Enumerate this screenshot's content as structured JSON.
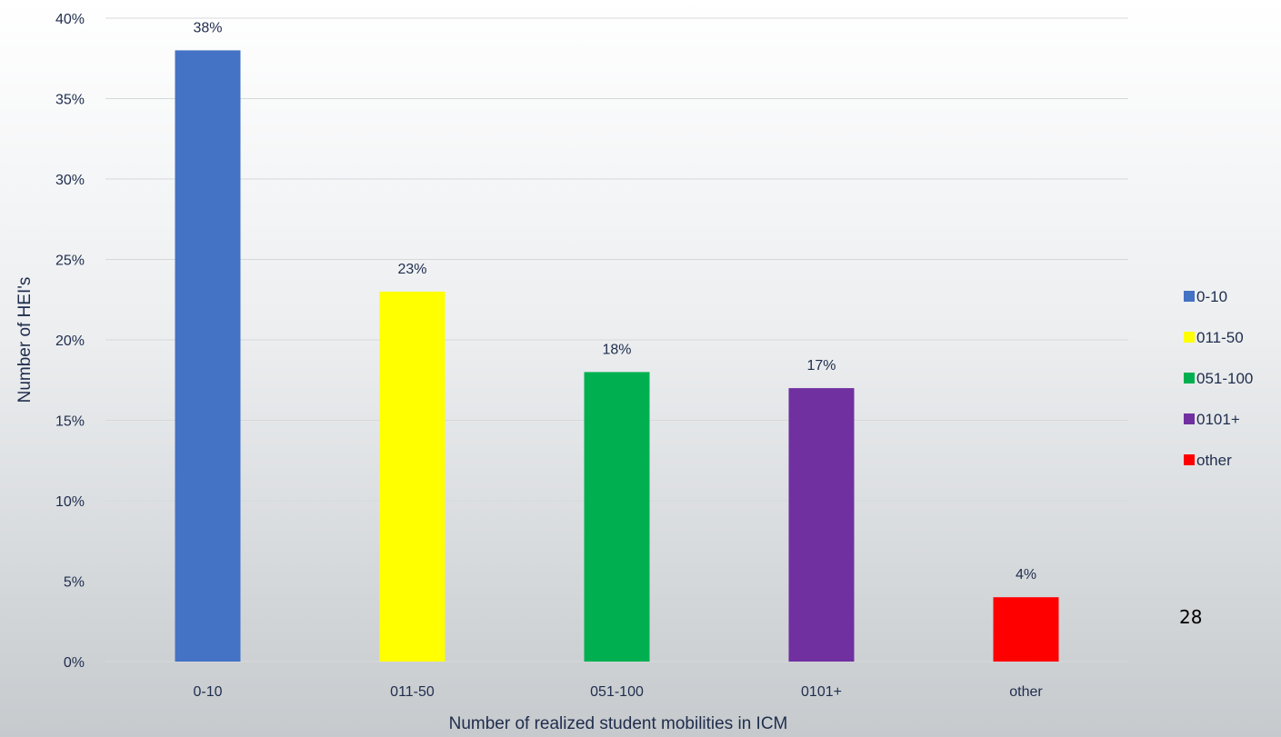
{
  "chart_data": {
    "type": "bar",
    "categories": [
      "0-10",
      "011-50",
      "051-100",
      "0101+",
      "other"
    ],
    "values": [
      38,
      23,
      18,
      17,
      4
    ],
    "data_labels": [
      "38%",
      "23%",
      "18%",
      "17%",
      "4%"
    ],
    "colors": [
      "#4472c4",
      "#ffff00",
      "#00b050",
      "#7030a0",
      "#ff0000"
    ],
    "xlabel": "Number of realized student mobilities in ICM",
    "ylabel": "Number of HEI's",
    "ylim": [
      0,
      40
    ],
    "yticks": [
      "0%",
      "5%",
      "10%",
      "15%",
      "20%",
      "25%",
      "30%",
      "35%",
      "40%"
    ],
    "grid": true,
    "legend": {
      "placement": "right",
      "entries": [
        "0-10",
        "011-50",
        "051-100",
        "0101+",
        "other"
      ]
    }
  },
  "page_number": "28"
}
